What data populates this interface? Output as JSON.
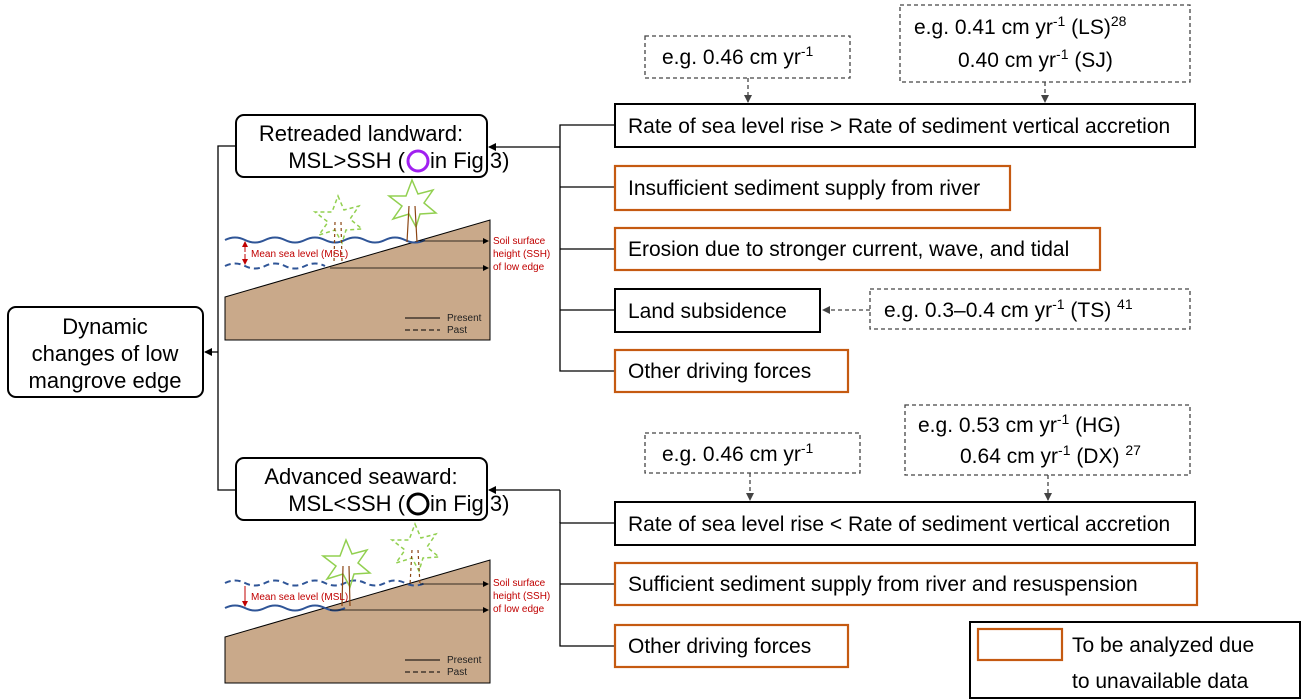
{
  "root": {
    "lines": [
      "Dynamic",
      "changes of low",
      "mangrove edge"
    ]
  },
  "branches": [
    {
      "title": "Retreaded landward:",
      "relation": "MSL>SSH (",
      "figure_ref": "in Fig 3)",
      "factors": [
        {
          "label": "Rate of sea level rise > Rate of sediment vertical accretion"
        },
        {
          "label": "Insufficient sediment supply from river"
        },
        {
          "label": "Erosion due to stronger current, wave, and tidal"
        },
        {
          "label": "Land subsidence"
        },
        {
          "label": "Other driving forces"
        }
      ],
      "examples": [
        {
          "lines": [
            [
              {
                "text": "e.g. 0.46 cm yr"
              },
              {
                "sup": "-1"
              }
            ]
          ]
        },
        {
          "lines": [
            [
              {
                "text": "e.g. 0.41 cm yr"
              },
              {
                "sup": "-1"
              },
              {
                "text": " (LS)"
              },
              {
                "sup": "28"
              }
            ],
            [
              {
                "text": "0.40 cm yr"
              },
              {
                "sup": "-1"
              },
              {
                "text": " (SJ)"
              }
            ]
          ]
        },
        {
          "lines": [
            [
              {
                "text": "e.g. 0.3–0.4 cm yr"
              },
              {
                "sup": "-1"
              },
              {
                "text": " (TS) "
              },
              {
                "sup": "41"
              }
            ]
          ]
        }
      ],
      "illustration": {
        "msl": "Mean sea level (MSL)",
        "ssh": [
          "Soil surface",
          "height (SSH)",
          "of low edge"
        ],
        "present": "Present",
        "past": "Past"
      }
    },
    {
      "title": "Advanced seaward:",
      "relation": "MSL<SSH (",
      "figure_ref": "in Fig 3)",
      "factors": [
        {
          "label": "Rate of sea level rise < Rate of sediment vertical accretion"
        },
        {
          "label": "Sufficient sediment supply from river and resuspension"
        },
        {
          "label": "Other driving forces"
        }
      ],
      "examples": [
        {
          "lines": [
            [
              {
                "text": "e.g. 0.46 cm yr"
              },
              {
                "sup": "-1"
              }
            ]
          ]
        },
        {
          "lines": [
            [
              {
                "text": "e.g. 0.53 cm yr"
              },
              {
                "sup": "-1"
              },
              {
                "text": " (HG)"
              }
            ],
            [
              {
                "text": "0.64 cm yr"
              },
              {
                "sup": "-1"
              },
              {
                "text": " (DX) "
              },
              {
                "sup": "27"
              }
            ]
          ]
        }
      ],
      "illustration": {
        "msl": "Mean sea level (MSL)",
        "ssh": [
          "Soil surface",
          "height (SSH)",
          "of low edge"
        ],
        "present": "Present",
        "past": "Past"
      }
    }
  ],
  "legend": {
    "lines": [
      "To be analyzed due",
      "to unavailable data"
    ]
  }
}
